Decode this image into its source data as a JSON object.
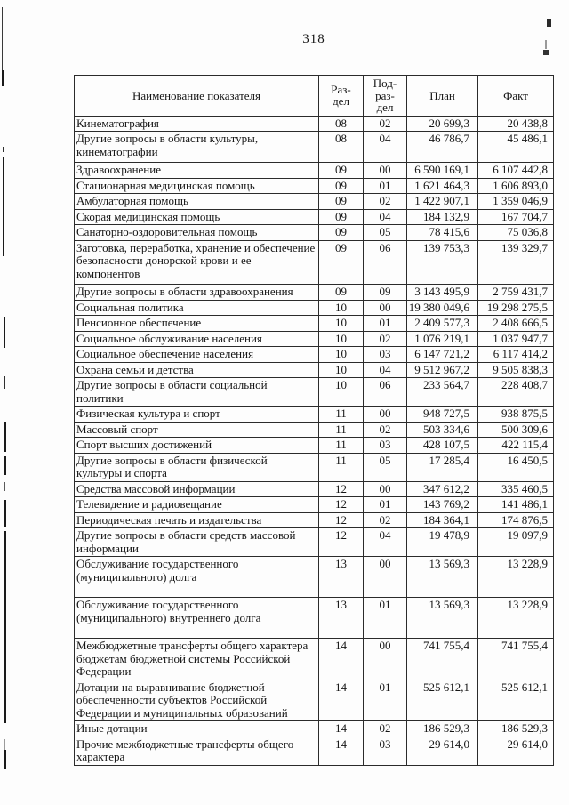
{
  "page": {
    "number": "318"
  },
  "table": {
    "headers": {
      "name": "Наименование показателя",
      "razdel": "Раз-\nдел",
      "podrazdel": "Под-\nраз-\nдел",
      "plan": "План",
      "fakt": "Факт"
    },
    "rows": [
      {
        "name": "Кинематография",
        "razdel": "08",
        "podrazdel": "02",
        "plan": "20 699,3",
        "fakt": "20 438,8"
      },
      {
        "name": "Другие вопросы в области культуры, кинематографии",
        "razdel": "08",
        "podrazdel": "04",
        "plan": "46 786,7",
        "fakt": "45 486,1"
      },
      {
        "name": "Здравоохранение",
        "razdel": "09",
        "podrazdel": "00",
        "plan": "6 590 169,1",
        "fakt": "6 107 442,8"
      },
      {
        "name": "Стационарная медицинская помощь",
        "razdel": "09",
        "podrazdel": "01",
        "plan": "1 621 464,3",
        "fakt": "1 606 893,0"
      },
      {
        "name": "Амбулаторная помощь",
        "razdel": "09",
        "podrazdel": "02",
        "plan": "1 422 907,1",
        "fakt": "1 359 046,9"
      },
      {
        "name": "Скорая медицинская помощь",
        "razdel": "09",
        "podrazdel": "04",
        "plan": "184 132,9",
        "fakt": "167 704,7"
      },
      {
        "name": "Санаторно-оздоровительная помощь",
        "razdel": "09",
        "podrazdel": "05",
        "plan": "78 415,6",
        "fakt": "75 036,8"
      },
      {
        "name": "Заготовка, переработка, хранение и обеспечение безопасности донорской крови и ее компонентов",
        "razdel": "09",
        "podrazdel": "06",
        "plan": "139 753,3",
        "fakt": "139 329,7"
      },
      {
        "name": "Другие вопросы в области здравоохранения",
        "razdel": "09",
        "podrazdel": "09",
        "plan": "3 143 495,9",
        "fakt": "2 759 431,7"
      },
      {
        "name": "Социальная политика",
        "razdel": "10",
        "podrazdel": "00",
        "plan": "19 380 049,6",
        "fakt": "19 298 275,5"
      },
      {
        "name": "Пенсионное обеспечение",
        "razdel": "10",
        "podrazdel": "01",
        "plan": "2 409 577,3",
        "fakt": "2 408 666,5"
      },
      {
        "name": "Социальное обслуживание населения",
        "razdel": "10",
        "podrazdel": "02",
        "plan": "1 076 219,1",
        "fakt": "1 037 947,7"
      },
      {
        "name": "Социальное обеспечение населения",
        "razdel": "10",
        "podrazdel": "03",
        "plan": "6 147 721,2",
        "fakt": "6 117 414,2"
      },
      {
        "name": "Охрана семьи и детства",
        "razdel": "10",
        "podrazdel": "04",
        "plan": "9 512 967,2",
        "fakt": "9 505 838,3"
      },
      {
        "name": "Другие вопросы в области социальной политики",
        "razdel": "10",
        "podrazdel": "06",
        "plan": "233 564,7",
        "fakt": "228 408,7"
      },
      {
        "name": "Физическая культура и спорт",
        "razdel": "11",
        "podrazdel": "00",
        "plan": "948 727,5",
        "fakt": "938 875,5"
      },
      {
        "name": "Массовый спорт",
        "razdel": "11",
        "podrazdel": "02",
        "plan": "503 334,6",
        "fakt": "500 309,6"
      },
      {
        "name": "Спорт высших достижений",
        "razdel": "11",
        "podrazdel": "03",
        "plan": "428 107,5",
        "fakt": "422 115,4"
      },
      {
        "name": "Другие вопросы в области физической культуры и спорта",
        "razdel": "11",
        "podrazdel": "05",
        "plan": "17 285,4",
        "fakt": "16 450,5"
      },
      {
        "name": "Средства массовой информации",
        "razdel": "12",
        "podrazdel": "00",
        "plan": "347 612,2",
        "fakt": "335 460,5"
      },
      {
        "name": "Телевидение и радиовещание",
        "razdel": "12",
        "podrazdel": "01",
        "plan": "143 769,2",
        "fakt": "141 486,1"
      },
      {
        "name": "Периодическая печать и издательства",
        "razdel": "12",
        "podrazdel": "02",
        "plan": "184 364,1",
        "fakt": "174 876,5"
      },
      {
        "name": "Другие вопросы в области средств массовой информации",
        "razdel": "12",
        "podrazdel": "04",
        "plan": "19 478,9",
        "fakt": "19 097,9"
      },
      {
        "name": "Обслуживание государственного (муниципального) долга",
        "razdel": "13",
        "podrazdel": "00",
        "plan": "13 569,3",
        "fakt": "13 228,9"
      },
      {
        "name": "Обслуживание государственного (муниципального) внутреннего долга",
        "razdel": "13",
        "podrazdel": "01",
        "plan": "13 569,3",
        "fakt": "13 228,9"
      },
      {
        "name": "Межбюджетные трансферты общего характера бюджетам бюджетной системы Российской Федерации",
        "razdel": "14",
        "podrazdel": "00",
        "plan": "741 755,4",
        "fakt": "741 755,4"
      },
      {
        "name": "Дотации на выравнивание бюджетной обеспеченности субъектов Российской Федерации и муниципальных образований",
        "razdel": "14",
        "podrazdel": "01",
        "plan": "525 612,1",
        "fakt": "525 612,1"
      },
      {
        "name": "Иные дотации",
        "razdel": "14",
        "podrazdel": "02",
        "plan": "186 529,3",
        "fakt": "186 529,3"
      },
      {
        "name": "Прочие межбюджетные трансферты общего характера",
        "razdel": "14",
        "podrazdel": "03",
        "plan": "29 614,0",
        "fakt": "29 614,0"
      }
    ]
  }
}
